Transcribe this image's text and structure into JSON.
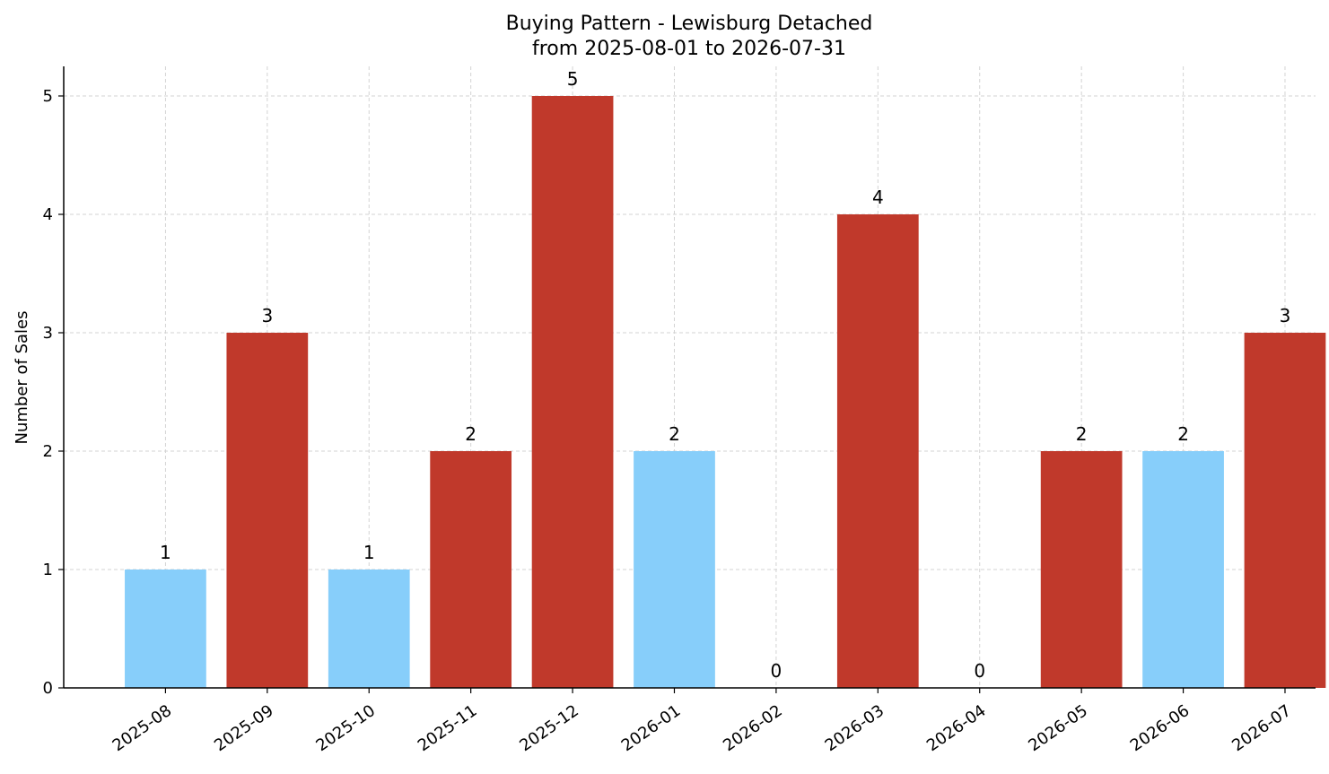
{
  "chart_data": {
    "type": "bar",
    "title": "Buying Pattern - Lewisburg Detached",
    "subtitle": "from 2025-08-01 to 2026-07-31",
    "xlabel": "",
    "ylabel": "Number of Sales",
    "categories": [
      "2025-08",
      "2025-09",
      "2025-10",
      "2025-11",
      "2025-12",
      "2026-01",
      "2026-02",
      "2026-03",
      "2026-04",
      "2026-05",
      "2026-06",
      "2026-07"
    ],
    "values": [
      1,
      3,
      1,
      2,
      5,
      2,
      0,
      4,
      0,
      2,
      2,
      3
    ],
    "bar_colors": [
      "#87cefa",
      "#c0392b",
      "#87cefa",
      "#c0392b",
      "#c0392b",
      "#87cefa",
      "#c0392b",
      "#c0392b",
      "#c0392b",
      "#c0392b",
      "#87cefa",
      "#c0392b"
    ],
    "yticks": [
      0,
      1,
      2,
      3,
      4,
      5
    ],
    "ylim": [
      0,
      5.25
    ],
    "grid": true,
    "legend": false,
    "x_tick_rotation": 35,
    "data_labels": true
  }
}
